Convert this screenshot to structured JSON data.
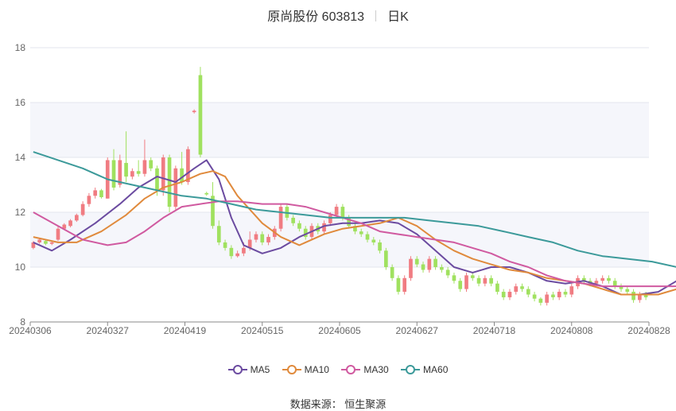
{
  "header": {
    "name_code": "原尚股份 603813",
    "period": "日K"
  },
  "source": "数据来源： 恒生聚源",
  "colors": {
    "up": "#f07c82",
    "down": "#a0e15f",
    "MA5": "#6b4ba0",
    "MA10": "#e08a3c",
    "MA30": "#d05aa0",
    "MA60": "#3c9a9a"
  },
  "chart_data": {
    "type": "candlestick",
    "title": "原尚股份 603813",
    "ylim": [
      8,
      18
    ],
    "yticks": [
      "8",
      "10",
      "12",
      "14",
      "16",
      "18"
    ],
    "xticks": [
      "20240306",
      "20240327",
      "20240419",
      "20240515",
      "20240605",
      "20240627",
      "20240718",
      "20240808",
      "20240828"
    ],
    "legend": [
      "MA5",
      "MA10",
      "MA30",
      "MA60"
    ],
    "candles": [
      [
        10.7,
        10.9,
        10.65,
        10.95
      ],
      [
        10.9,
        11.0,
        10.85,
        11.05
      ],
      [
        10.95,
        10.85,
        10.8,
        11.0
      ],
      [
        10.85,
        10.9,
        10.8,
        10.95
      ],
      [
        11.0,
        11.4,
        10.95,
        11.5
      ],
      [
        11.4,
        11.55,
        11.35,
        11.6
      ],
      [
        11.5,
        11.7,
        11.45,
        11.75
      ],
      [
        11.7,
        11.9,
        11.65,
        11.95
      ],
      [
        11.9,
        12.3,
        11.85,
        12.4
      ],
      [
        12.3,
        12.6,
        12.2,
        12.7
      ],
      [
        12.6,
        12.8,
        12.5,
        12.9
      ],
      [
        12.8,
        12.55,
        12.5,
        12.85
      ],
      [
        12.5,
        13.9,
        12.5,
        14.0
      ],
      [
        13.9,
        12.9,
        12.8,
        14.3
      ],
      [
        13.0,
        13.9,
        12.9,
        14.1
      ],
      [
        13.8,
        13.3,
        13.1,
        14.95
      ],
      [
        13.3,
        13.5,
        13.2,
        13.6
      ],
      [
        13.5,
        13.4,
        13.3,
        13.9
      ],
      [
        13.4,
        13.9,
        13.3,
        14.65
      ],
      [
        13.9,
        13.6,
        13.5,
        14.0
      ],
      [
        13.6,
        12.8,
        12.6,
        13.7
      ],
      [
        12.8,
        14.0,
        12.6,
        14.1
      ],
      [
        14.0,
        12.2,
        12.0,
        14.1
      ],
      [
        12.2,
        13.6,
        12.1,
        13.7
      ],
      [
        13.6,
        13.1,
        13.0,
        14.2
      ],
      [
        13.1,
        14.3,
        13.0,
        14.4
      ],
      [
        15.65,
        15.7,
        15.6,
        15.75
      ],
      [
        17.0,
        14.1,
        14.0,
        17.3
      ],
      [
        12.7,
        12.65,
        12.6,
        12.75
      ],
      [
        12.6,
        11.5,
        11.4,
        13.1
      ],
      [
        11.5,
        10.9,
        10.8,
        11.7
      ],
      [
        10.9,
        10.7,
        10.6,
        11.0
      ],
      [
        10.7,
        10.4,
        10.3,
        10.8
      ],
      [
        10.4,
        10.5,
        10.35,
        10.6
      ],
      [
        10.5,
        10.7,
        10.4,
        10.9
      ],
      [
        10.7,
        11.0,
        10.6,
        11.3
      ],
      [
        11.0,
        11.2,
        10.9,
        11.3
      ],
      [
        11.2,
        10.9,
        10.8,
        11.3
      ],
      [
        10.9,
        11.1,
        10.8,
        11.2
      ],
      [
        11.1,
        11.4,
        11.0,
        11.5
      ],
      [
        11.4,
        12.2,
        11.3,
        12.3
      ],
      [
        12.2,
        11.8,
        11.7,
        12.3
      ],
      [
        11.8,
        11.6,
        11.5,
        11.9
      ],
      [
        11.6,
        11.4,
        11.3,
        11.7
      ],
      [
        11.4,
        11.1,
        11.0,
        11.5
      ],
      [
        11.1,
        11.5,
        11.0,
        11.6
      ],
      [
        11.5,
        11.3,
        11.2,
        11.6
      ],
      [
        11.3,
        11.6,
        11.2,
        11.7
      ],
      [
        11.6,
        11.9,
        11.5,
        12.0
      ],
      [
        11.9,
        12.2,
        11.8,
        12.3
      ],
      [
        12.2,
        11.8,
        11.7,
        12.3
      ],
      [
        11.8,
        11.5,
        11.4,
        11.9
      ],
      [
        11.5,
        11.3,
        11.2,
        11.6
      ],
      [
        11.3,
        11.2,
        11.1,
        11.4
      ],
      [
        11.2,
        11.0,
        10.9,
        11.3
      ],
      [
        11.0,
        10.9,
        10.8,
        11.1
      ],
      [
        10.9,
        10.6,
        10.5,
        11.0
      ],
      [
        10.6,
        10.0,
        9.9,
        10.7
      ],
      [
        10.0,
        9.6,
        9.5,
        10.1
      ],
      [
        9.6,
        9.1,
        9.0,
        9.7
      ],
      [
        9.1,
        9.6,
        9.0,
        9.7
      ],
      [
        9.6,
        10.3,
        9.5,
        10.4
      ],
      [
        10.3,
        10.1,
        10.0,
        10.4
      ],
      [
        10.1,
        9.9,
        9.8,
        10.2
      ],
      [
        9.9,
        10.3,
        9.8,
        10.4
      ],
      [
        10.3,
        10.0,
        9.9,
        10.4
      ],
      [
        10.0,
        9.9,
        9.8,
        10.1
      ],
      [
        9.9,
        9.7,
        9.6,
        10.0
      ],
      [
        9.7,
        9.5,
        9.4,
        9.8
      ],
      [
        9.5,
        9.2,
        9.1,
        9.6
      ],
      [
        9.2,
        9.7,
        9.1,
        9.8
      ],
      [
        9.7,
        9.6,
        9.5,
        9.8
      ],
      [
        9.6,
        9.4,
        9.3,
        9.7
      ],
      [
        9.4,
        9.6,
        9.3,
        9.7
      ],
      [
        9.6,
        9.4,
        9.3,
        9.7
      ],
      [
        9.4,
        9.1,
        9.0,
        9.5
      ],
      [
        9.1,
        8.9,
        8.8,
        9.2
      ],
      [
        8.9,
        9.1,
        8.8,
        9.2
      ],
      [
        9.1,
        9.3,
        9.0,
        9.4
      ],
      [
        9.3,
        9.2,
        9.1,
        9.4
      ],
      [
        9.2,
        9.0,
        8.9,
        9.3
      ],
      [
        9.0,
        8.85,
        8.75,
        9.1
      ],
      [
        8.85,
        8.7,
        8.6,
        8.9
      ],
      [
        8.7,
        9.0,
        8.6,
        9.1
      ],
      [
        9.0,
        8.9,
        8.8,
        9.1
      ],
      [
        8.9,
        9.1,
        8.8,
        9.2
      ],
      [
        9.1,
        9.0,
        8.9,
        9.2
      ],
      [
        9.0,
        9.3,
        8.9,
        9.4
      ],
      [
        9.3,
        9.6,
        9.2,
        9.7
      ],
      [
        9.6,
        9.5,
        9.4,
        9.7
      ],
      [
        9.5,
        9.4,
        9.3,
        9.6
      ],
      [
        9.4,
        9.5,
        9.3,
        9.6
      ],
      [
        9.5,
        9.6,
        9.4,
        9.7
      ],
      [
        9.6,
        9.5,
        9.4,
        9.7
      ],
      [
        9.5,
        9.3,
        9.2,
        9.6
      ],
      [
        9.3,
        9.2,
        9.1,
        9.4
      ],
      [
        9.2,
        9.1,
        9.0,
        9.3
      ],
      [
        9.1,
        8.8,
        8.7,
        9.2
      ],
      [
        8.8,
        9.0,
        8.7,
        9.1
      ],
      [
        9.0,
        8.9,
        8.8,
        9.1
      ]
    ],
    "series": [
      {
        "name": "MA5",
        "points": [
          [
            0,
            10.9
          ],
          [
            3,
            10.6
          ],
          [
            6,
            11.0
          ],
          [
            10,
            11.6
          ],
          [
            14,
            12.3
          ],
          [
            17,
            12.9
          ],
          [
            20,
            13.3
          ],
          [
            23,
            13.1
          ],
          [
            26,
            13.6
          ],
          [
            28,
            13.9
          ],
          [
            30,
            13.2
          ],
          [
            32,
            11.8
          ],
          [
            34,
            10.8
          ],
          [
            37,
            10.5
          ],
          [
            40,
            10.7
          ],
          [
            43,
            11.1
          ],
          [
            47,
            11.5
          ],
          [
            50,
            11.6
          ],
          [
            53,
            11.6
          ],
          [
            56,
            11.7
          ],
          [
            59,
            11.6
          ],
          [
            62,
            11.2
          ],
          [
            65,
            10.6
          ],
          [
            68,
            10.0
          ],
          [
            71,
            9.8
          ],
          [
            74,
            10.0
          ],
          [
            77,
            10.0
          ],
          [
            80,
            9.8
          ],
          [
            83,
            9.5
          ],
          [
            86,
            9.4
          ],
          [
            89,
            9.5
          ],
          [
            92,
            9.3
          ],
          [
            95,
            9.0
          ],
          [
            98,
            9.0
          ],
          [
            101,
            9.1
          ],
          [
            104,
            9.5
          ],
          [
            107,
            9.5
          ],
          [
            110,
            9.5
          ],
          [
            113,
            9.3
          ],
          [
            116,
            9.0
          ],
          [
            118,
            8.95
          ]
        ]
      },
      {
        "name": "MA10",
        "points": [
          [
            0,
            11.1
          ],
          [
            4,
            10.9
          ],
          [
            7,
            10.9
          ],
          [
            11,
            11.3
          ],
          [
            15,
            11.9
          ],
          [
            18,
            12.5
          ],
          [
            21,
            12.9
          ],
          [
            24,
            13.1
          ],
          [
            27,
            13.4
          ],
          [
            29,
            13.5
          ],
          [
            31,
            13.3
          ],
          [
            33,
            12.6
          ],
          [
            35,
            12.1
          ],
          [
            37,
            11.6
          ],
          [
            40,
            11.1
          ],
          [
            43,
            10.8
          ],
          [
            47,
            11.2
          ],
          [
            50,
            11.4
          ],
          [
            53,
            11.5
          ],
          [
            56,
            11.6
          ],
          [
            59,
            11.8
          ],
          [
            62,
            11.5
          ],
          [
            65,
            11.0
          ],
          [
            68,
            10.6
          ],
          [
            71,
            10.3
          ],
          [
            74,
            10.1
          ],
          [
            77,
            9.9
          ],
          [
            80,
            9.8
          ],
          [
            83,
            9.6
          ],
          [
            86,
            9.5
          ],
          [
            89,
            9.4
          ],
          [
            92,
            9.2
          ],
          [
            95,
            9.0
          ],
          [
            98,
            9.0
          ],
          [
            101,
            9.0
          ],
          [
            104,
            9.2
          ],
          [
            107,
            9.5
          ],
          [
            110,
            9.5
          ],
          [
            113,
            9.4
          ],
          [
            116,
            9.2
          ],
          [
            118,
            9.25
          ]
        ]
      },
      {
        "name": "MA30",
        "points": [
          [
            0,
            12.0
          ],
          [
            4,
            11.5
          ],
          [
            8,
            11.0
          ],
          [
            12,
            10.8
          ],
          [
            15,
            10.9
          ],
          [
            18,
            11.3
          ],
          [
            21,
            11.8
          ],
          [
            24,
            12.2
          ],
          [
            27,
            12.3
          ],
          [
            30,
            12.4
          ],
          [
            33,
            12.4
          ],
          [
            37,
            12.3
          ],
          [
            41,
            12.3
          ],
          [
            44,
            12.2
          ],
          [
            47,
            12.0
          ],
          [
            50,
            11.8
          ],
          [
            53,
            11.6
          ],
          [
            56,
            11.3
          ],
          [
            59,
            11.2
          ],
          [
            62,
            11.1
          ],
          [
            65,
            11.0
          ],
          [
            68,
            10.9
          ],
          [
            71,
            10.7
          ],
          [
            74,
            10.5
          ],
          [
            77,
            10.2
          ],
          [
            80,
            10.0
          ],
          [
            83,
            9.7
          ],
          [
            86,
            9.5
          ],
          [
            89,
            9.4
          ],
          [
            92,
            9.3
          ],
          [
            95,
            9.3
          ],
          [
            98,
            9.3
          ],
          [
            101,
            9.3
          ],
          [
            104,
            9.3
          ],
          [
            107,
            9.3
          ],
          [
            110,
            9.3
          ],
          [
            113,
            9.3
          ],
          [
            116,
            9.2
          ],
          [
            118,
            9.2
          ]
        ]
      },
      {
        "name": "MA60",
        "points": [
          [
            0,
            14.2
          ],
          [
            4,
            13.9
          ],
          [
            8,
            13.6
          ],
          [
            12,
            13.2
          ],
          [
            16,
            13.0
          ],
          [
            20,
            12.8
          ],
          [
            24,
            12.6
          ],
          [
            28,
            12.5
          ],
          [
            32,
            12.3
          ],
          [
            36,
            12.1
          ],
          [
            40,
            12.0
          ],
          [
            44,
            11.9
          ],
          [
            48,
            11.8
          ],
          [
            52,
            11.8
          ],
          [
            56,
            11.8
          ],
          [
            60,
            11.8
          ],
          [
            64,
            11.7
          ],
          [
            68,
            11.6
          ],
          [
            72,
            11.5
          ],
          [
            76,
            11.3
          ],
          [
            80,
            11.1
          ],
          [
            84,
            10.9
          ],
          [
            88,
            10.6
          ],
          [
            92,
            10.4
          ],
          [
            96,
            10.3
          ],
          [
            100,
            10.2
          ],
          [
            104,
            10.0
          ],
          [
            108,
            9.9
          ],
          [
            112,
            9.7
          ],
          [
            116,
            9.5
          ],
          [
            118,
            9.4
          ]
        ]
      }
    ]
  }
}
